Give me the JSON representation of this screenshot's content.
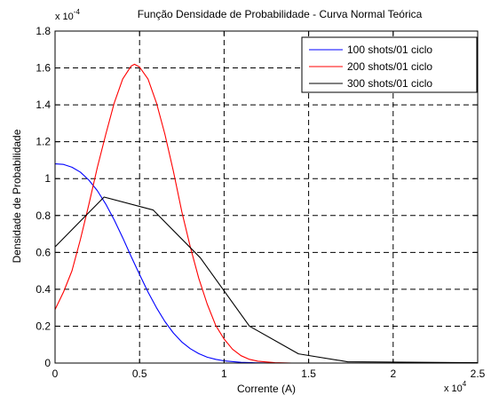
{
  "chart_data": {
    "type": "line",
    "title": "Função Densidade de Probabilidade - Curva Normal Teórica",
    "xlabel": "Corrente (A)",
    "ylabel": "Densidade de Probabilidade",
    "x_exponent_label": "x 10",
    "x_exponent": "4",
    "y_exponent_label": "x 10",
    "y_exponent": "-4",
    "xlim": [
      0,
      2.5
    ],
    "ylim": [
      0,
      1.8
    ],
    "xticks": [
      0,
      0.5,
      1,
      1.5,
      2,
      2.5
    ],
    "xtick_labels": [
      "0",
      "0.5",
      "1",
      "1.5",
      "2",
      "2.5"
    ],
    "yticks": [
      0,
      0.2,
      0.4,
      0.6,
      0.8,
      1,
      1.2,
      1.4,
      1.6,
      1.8
    ],
    "ytick_labels": [
      "0",
      "0.2",
      "0.4",
      "0.6",
      "0.8",
      "1",
      "1.2",
      "1.4",
      "1.6",
      "1.8"
    ],
    "grid": true,
    "legend_position": "top-right",
    "series": [
      {
        "name": "100 shots/01 ciclo",
        "color": "#0000ff",
        "points": [
          [
            0,
            1.08
          ],
          [
            0.05,
            1.077
          ],
          [
            0.1,
            1.062
          ],
          [
            0.15,
            1.035
          ],
          [
            0.2,
            0.992
          ],
          [
            0.25,
            0.935
          ],
          [
            0.3,
            0.862
          ],
          [
            0.35,
            0.776
          ],
          [
            0.4,
            0.68
          ],
          [
            0.45,
            0.578
          ],
          [
            0.5,
            0.48
          ],
          [
            0.55,
            0.385
          ],
          [
            0.6,
            0.3
          ],
          [
            0.65,
            0.225
          ],
          [
            0.7,
            0.163
          ],
          [
            0.75,
            0.114
          ],
          [
            0.8,
            0.078
          ],
          [
            0.85,
            0.051
          ],
          [
            0.9,
            0.032
          ],
          [
            0.95,
            0.02
          ],
          [
            1.0,
            0.012
          ],
          [
            1.1,
            0.004
          ],
          [
            1.2,
            0.001
          ],
          [
            1.3,
            0.0
          ],
          [
            2.5,
            0.0
          ]
        ]
      },
      {
        "name": "200 shots/01 ciclo",
        "color": "#ff0000",
        "points": [
          [
            0,
            0.29
          ],
          [
            0.05,
            0.385
          ],
          [
            0.1,
            0.5
          ],
          [
            0.15,
            0.67
          ],
          [
            0.2,
            0.86
          ],
          [
            0.25,
            1.06
          ],
          [
            0.3,
            1.24
          ],
          [
            0.35,
            1.41
          ],
          [
            0.4,
            1.54
          ],
          [
            0.45,
            1.61
          ],
          [
            0.47,
            1.62
          ],
          [
            0.5,
            1.605
          ],
          [
            0.55,
            1.54
          ],
          [
            0.6,
            1.41
          ],
          [
            0.65,
            1.24
          ],
          [
            0.7,
            1.04
          ],
          [
            0.75,
            0.82
          ],
          [
            0.8,
            0.63
          ],
          [
            0.85,
            0.46
          ],
          [
            0.9,
            0.32
          ],
          [
            0.95,
            0.205
          ],
          [
            1.0,
            0.13
          ],
          [
            1.05,
            0.075
          ],
          [
            1.1,
            0.04
          ],
          [
            1.15,
            0.02
          ],
          [
            1.2,
            0.01
          ],
          [
            1.3,
            0.002
          ],
          [
            1.4,
            0.0
          ],
          [
            2.5,
            0.0
          ]
        ]
      },
      {
        "name": "300 shots/01 ciclo",
        "color": "#000000",
        "points": [
          [
            0,
            0.63
          ],
          [
            0.29,
            0.9
          ],
          [
            0.58,
            0.83
          ],
          [
            0.86,
            0.57
          ],
          [
            1.15,
            0.2
          ],
          [
            1.44,
            0.05
          ],
          [
            1.73,
            0.007
          ],
          [
            2.5,
            0.002
          ]
        ]
      }
    ]
  }
}
